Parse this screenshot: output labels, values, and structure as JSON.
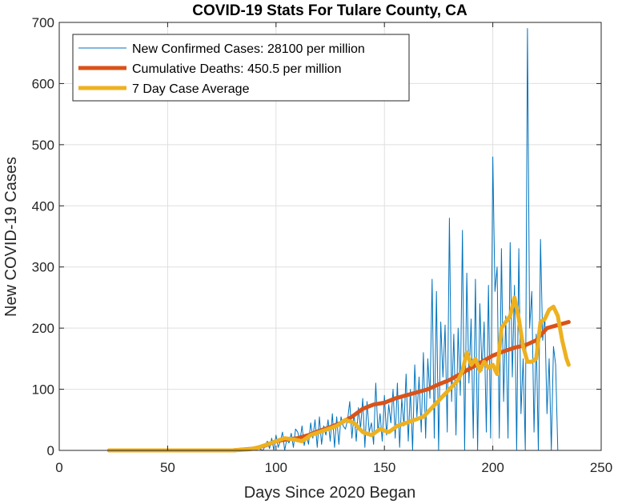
{
  "chart_data": {
    "type": "line",
    "title": "COVID-19 Stats For Tulare County, CA",
    "xlabel": "Days Since 2020 Began",
    "ylabel": "New COVID-19 Cases",
    "xlim": [
      0,
      250
    ],
    "ylim": [
      0,
      700
    ],
    "xticks": [
      0,
      50,
      100,
      150,
      200,
      250
    ],
    "yticks": [
      0,
      100,
      200,
      300,
      400,
      500,
      600,
      700
    ],
    "grid": true,
    "legend_position": "top-left",
    "series": [
      {
        "name": "New Confirmed Cases: 28100 per million",
        "color": "#0072BD",
        "x": [
          23,
          30,
          40,
          50,
          60,
          70,
          75,
          80,
          85,
          88,
          90,
          92,
          94,
          95,
          96,
          97,
          98,
          99,
          100,
          101,
          102,
          103,
          104,
          105,
          106,
          107,
          108,
          109,
          110,
          111,
          112,
          113,
          114,
          115,
          116,
          117,
          118,
          119,
          120,
          121,
          122,
          123,
          124,
          125,
          126,
          127,
          128,
          129,
          130,
          131,
          132,
          133,
          134,
          135,
          136,
          137,
          138,
          139,
          140,
          141,
          142,
          143,
          144,
          145,
          146,
          147,
          148,
          149,
          150,
          151,
          152,
          153,
          154,
          155,
          156,
          157,
          158,
          159,
          160,
          161,
          162,
          163,
          164,
          165,
          166,
          167,
          168,
          169,
          170,
          171,
          172,
          173,
          174,
          175,
          176,
          177,
          178,
          179,
          180,
          181,
          182,
          183,
          184,
          185,
          186,
          187,
          188,
          189,
          190,
          191,
          192,
          193,
          194,
          195,
          196,
          197,
          198,
          199,
          200,
          201,
          202,
          203,
          204,
          205,
          206,
          207,
          208,
          209,
          210,
          211,
          212,
          213,
          214,
          215,
          216,
          217,
          218,
          219,
          220,
          221,
          222,
          223,
          224,
          225,
          226,
          227,
          228,
          229,
          230,
          231,
          232,
          233,
          234,
          235
        ],
        "values": [
          0,
          0,
          0,
          0,
          0,
          0,
          0,
          0,
          0,
          2,
          5,
          3,
          0,
          8,
          15,
          3,
          20,
          0,
          25,
          5,
          15,
          30,
          0,
          18,
          12,
          28,
          5,
          35,
          30,
          15,
          40,
          8,
          25,
          10,
          45,
          20,
          50,
          5,
          55,
          10,
          40,
          25,
          50,
          15,
          60,
          5,
          55,
          10,
          55,
          40,
          35,
          50,
          80,
          20,
          60,
          15,
          70,
          35,
          85,
          5,
          80,
          30,
          45,
          10,
          110,
          30,
          60,
          15,
          90,
          25,
          75,
          45,
          100,
          20,
          110,
          5,
          85,
          40,
          125,
          15,
          100,
          0,
          140,
          55,
          120,
          30,
          160,
          20,
          150,
          85,
          280,
          20,
          260,
          0,
          210,
          120,
          205,
          30,
          380,
          80,
          190,
          25,
          200,
          90,
          360,
          0,
          290,
          110,
          215,
          20,
          280,
          0,
          240,
          130,
          210,
          30,
          270,
          20,
          480,
          260,
          300,
          20,
          330,
          80,
          220,
          20,
          340,
          120,
          270,
          0,
          330,
          60,
          150,
          0,
          690,
          200,
          260,
          30,
          190,
          0,
          345,
          180,
          220,
          60,
          150,
          0,
          170,
          140,
          0,
          0,
          0,
          0,
          0,
          0
        ],
        "line_width": 1
      },
      {
        "name": "Cumulative Deaths: 450.5 per million",
        "color": "#D95319",
        "x": [
          23,
          40,
          60,
          80,
          90,
          95,
          100,
          105,
          110,
          115,
          120,
          125,
          130,
          135,
          140,
          145,
          150,
          155,
          160,
          165,
          170,
          175,
          180,
          185,
          190,
          195,
          200,
          205,
          210,
          215,
          220,
          225,
          230,
          235
        ],
        "values": [
          0,
          0,
          0,
          0,
          3,
          8,
          15,
          18,
          20,
          25,
          32,
          38,
          45,
          55,
          68,
          75,
          78,
          85,
          90,
          95,
          100,
          108,
          115,
          125,
          135,
          145,
          155,
          162,
          168,
          172,
          180,
          200,
          205,
          210
        ],
        "line_width": 5
      },
      {
        "name": "7 Day Case Average",
        "color": "#EDB120",
        "x": [
          23,
          40,
          60,
          80,
          88,
          92,
          96,
          100,
          104,
          108,
          112,
          116,
          120,
          124,
          128,
          132,
          136,
          140,
          144,
          148,
          152,
          156,
          160,
          164,
          168,
          172,
          176,
          180,
          184,
          186,
          188,
          190,
          192,
          194,
          196,
          198,
          200,
          202,
          204,
          206,
          208,
          210,
          212,
          214,
          216,
          218,
          220,
          222,
          224,
          226,
          228,
          230,
          232,
          234,
          235
        ],
        "values": [
          0,
          0,
          0,
          0,
          2,
          5,
          10,
          15,
          20,
          18,
          15,
          25,
          30,
          35,
          40,
          50,
          45,
          30,
          25,
          35,
          30,
          40,
          45,
          50,
          55,
          70,
          85,
          100,
          115,
          130,
          160,
          140,
          150,
          130,
          145,
          135,
          140,
          125,
          200,
          210,
          220,
          250,
          215,
          170,
          145,
          145,
          150,
          210,
          215,
          230,
          235,
          220,
          180,
          150,
          140
        ],
        "line_width": 5
      }
    ]
  }
}
